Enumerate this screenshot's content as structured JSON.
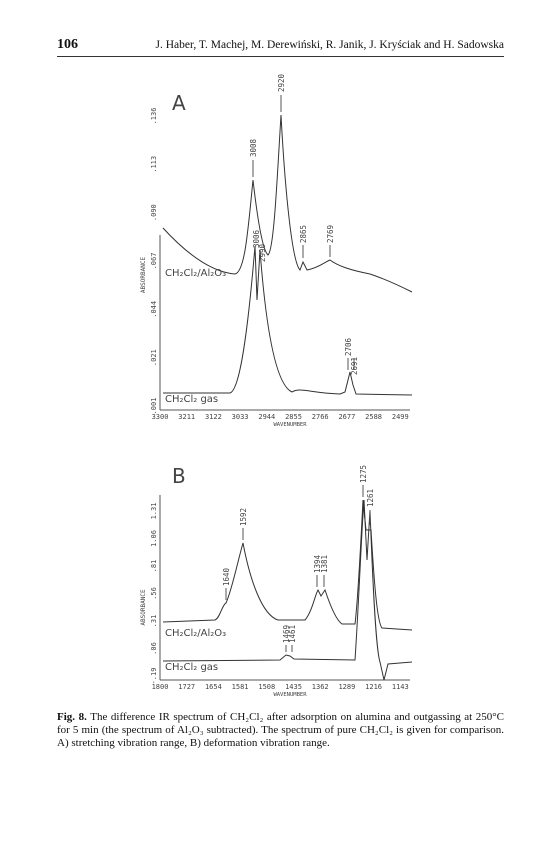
{
  "header": {
    "page_number": "106",
    "authors": "J. Haber, T. Machej, M. Derewiński, R. Janik, J. Kryściak and H. Sadowska"
  },
  "figure_a": {
    "panel": "A",
    "y_label": "ABSORBANCE",
    "x_label": "WAVENUMBER",
    "yticks": [
      ".001",
      ".021",
      ".044",
      ".067",
      ".090",
      ".113",
      ".136"
    ],
    "xticks": [
      "3300",
      "3211",
      "3122",
      "3033",
      "2944",
      "2855",
      "2766",
      "2677",
      "2588",
      "2499"
    ],
    "peaks": [
      "2920",
      "3008",
      "3006",
      "2990",
      "2865",
      "2769",
      "2706",
      "2691"
    ],
    "traces": [
      "CH₂Cl₂/Al₂O₃",
      "CH₂Cl₂ gas"
    ]
  },
  "figure_b": {
    "panel": "B",
    "y_label": "ABSORBANCE",
    "x_label": "WAVENUMBER",
    "yticks": [
      "-.19",
      ".06",
      ".31",
      ".56",
      ".81",
      "1.06",
      "1.31"
    ],
    "xticks": [
      "1800",
      "1727",
      "1654",
      "1581",
      "1508",
      "1435",
      "1362",
      "1289",
      "1216",
      "1143"
    ],
    "peaks": [
      "1275",
      "1261",
      "1592",
      "1640",
      "1394",
      "1381",
      "1469",
      "1461"
    ],
    "traces": [
      "CH₂Cl₂/Al₂O₃",
      "CH₂Cl₂ gas"
    ]
  },
  "caption": {
    "label": "Fig. 8.",
    "text": "The difference IR spectrum of CH₂Cl₂ after adsorption on alumina and outgassing at 250°C for 5 min (the spectrum of Al₂O₃ subtracted). The spectrum of pure CH₂Cl₂ is given for comparison. A) stretching vibration range, B) deformation vibration range."
  }
}
